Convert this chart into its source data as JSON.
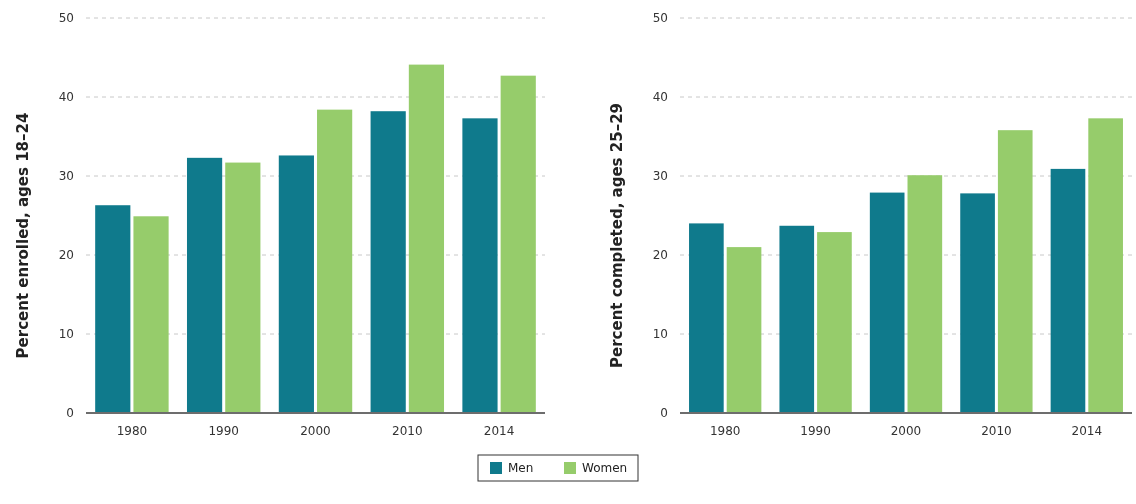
{
  "chart_data": [
    {
      "type": "bar",
      "ylabel": "Percent enrolled, ages 18–24",
      "categories": [
        "1980",
        "1990",
        "2000",
        "2010",
        "2014"
      ],
      "series": [
        {
          "name": "Men",
          "color": "#0f7a8c",
          "values": [
            26.3,
            32.3,
            32.6,
            38.2,
            37.3
          ]
        },
        {
          "name": "Women",
          "color": "#96cc6b",
          "values": [
            24.9,
            31.7,
            38.4,
            44.1,
            42.7
          ]
        }
      ],
      "ylim": [
        0,
        50
      ],
      "yticks": [
        0,
        10,
        20,
        30,
        40,
        50
      ],
      "grid": "y",
      "legend": "bottom"
    },
    {
      "type": "bar",
      "ylabel": "Percent completed, ages 25–29",
      "categories": [
        "1980",
        "1990",
        "2000",
        "2010",
        "2014"
      ],
      "series": [
        {
          "color": "#0f7a8c",
          "values": [
            24.0,
            23.7,
            27.9,
            27.8,
            30.9
          ]
        },
        {
          "color": "#96cc6b",
          "values": [
            21.0,
            22.9,
            30.1,
            35.8,
            37.3
          ]
        }
      ],
      "ylim": [
        0,
        50
      ],
      "yticks": [
        0,
        10,
        20,
        30,
        40,
        50
      ],
      "grid": "y"
    }
  ]
}
